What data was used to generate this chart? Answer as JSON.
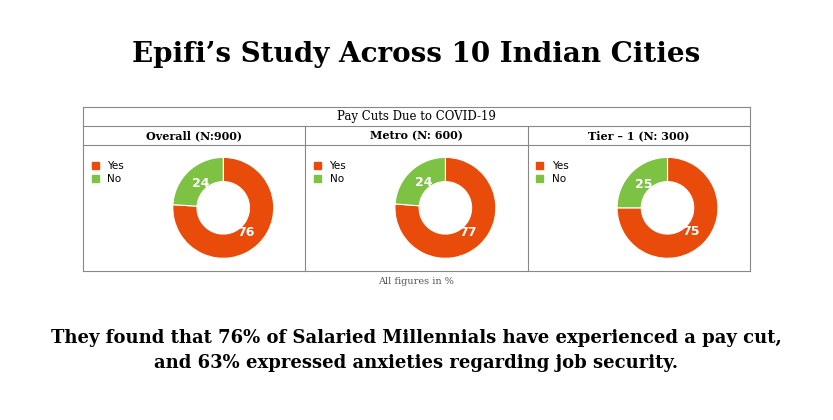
{
  "title": "Epifi’s Study Across 10 Indian Cities",
  "table_title": "Pay Cuts Due to COVID-19",
  "columns": [
    {
      "label": "Overall (N:900)",
      "yes": 76,
      "no": 24
    },
    {
      "label": "Metro (N: 600)",
      "yes": 77,
      "no": 24
    },
    {
      "label": "Tier – 1 (N: 300)",
      "yes": 75,
      "no": 25
    }
  ],
  "yes_color": "#E84B0A",
  "no_color": "#7DC242",
  "footer": "All figures in %",
  "body_text_line1": "They found that 76% of Salaried Millennials have experienced a pay cut,",
  "body_text_line2": "and 63% expressed anxieties regarding job security.",
  "bg_color": "#FFFFFF",
  "table_border_color": "#888888",
  "title_fontsize": 20,
  "col_label_fontsize": 8,
  "donut_label_fontsize": 9,
  "legend_fontsize": 7.5,
  "footer_fontsize": 7,
  "body_fontsize": 13
}
